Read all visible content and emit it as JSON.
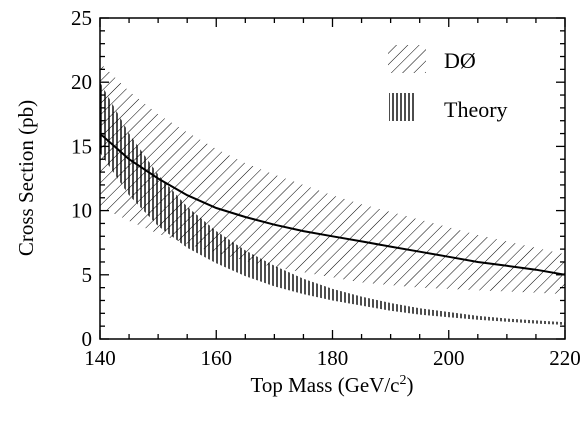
{
  "chart_data": {
    "type": "area",
    "xlabel": "Top Mass (GeV/c",
    "xlabel_sup": "2",
    "xlabel_close": ")",
    "ylabel": "Cross Section (pb)",
    "xlim": [
      140,
      220
    ],
    "ylim": [
      0,
      25
    ],
    "x_ticks": [
      "140",
      "160",
      "180",
      "200",
      "220"
    ],
    "y_ticks": [
      "0",
      "5",
      "10",
      "15",
      "20",
      "25"
    ],
    "grid": false,
    "legend_position": "top-right",
    "x": [
      140,
      145,
      150,
      155,
      160,
      165,
      170,
      175,
      180,
      185,
      190,
      195,
      200,
      205,
      210,
      215,
      220
    ],
    "series": [
      {
        "name": "DØ",
        "style": "diagonal-hatch",
        "central": [
          16.0,
          14.0,
          12.5,
          11.2,
          10.2,
          9.5,
          8.9,
          8.4,
          8.0,
          7.6,
          7.2,
          6.8,
          6.4,
          6.0,
          5.7,
          5.4,
          5.0
        ],
        "upper": [
          21.5,
          19.3,
          17.5,
          16.1,
          14.8,
          13.7,
          12.8,
          12.0,
          11.2,
          10.5,
          9.9,
          9.3,
          8.7,
          8.1,
          7.6,
          7.1,
          6.6
        ],
        "lower": [
          10.3,
          9.2,
          8.2,
          7.4,
          6.7,
          6.1,
          5.6,
          5.2,
          4.8,
          4.4,
          4.2,
          4.0,
          3.9,
          3.8,
          3.7,
          3.6,
          3.5
        ]
      },
      {
        "name": "Theory",
        "style": "vertical-hatch",
        "upper": [
          20.0,
          16.0,
          12.8,
          10.3,
          8.4,
          6.9,
          5.7,
          4.7,
          3.9,
          3.3,
          2.8,
          2.4,
          2.1,
          1.8,
          1.6,
          1.45,
          1.3
        ],
        "lower": [
          14.5,
          11.2,
          8.8,
          7.1,
          5.9,
          4.9,
          4.1,
          3.5,
          3.0,
          2.6,
          2.2,
          1.9,
          1.7,
          1.5,
          1.35,
          1.2,
          1.1
        ]
      }
    ]
  }
}
